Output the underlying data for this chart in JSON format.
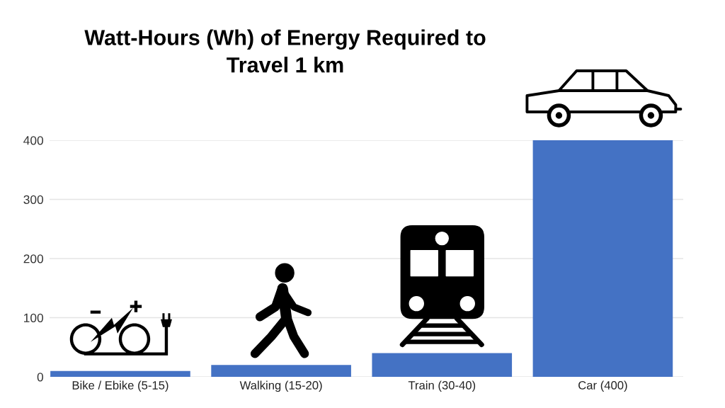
{
  "chart_data": {
    "type": "bar",
    "title": "Watt-Hours (Wh) of Energy Required to\nTravel 1 km",
    "categories": [
      "Bike / Ebike (5-15)",
      "Walking (15-20)",
      "Train (30-40)",
      "Car (400)"
    ],
    "values": [
      10,
      20,
      40,
      400
    ],
    "color": "#4472c4",
    "ylim": [
      0,
      400
    ],
    "yticks": [
      0,
      100,
      200,
      300,
      400
    ],
    "grid": "y"
  }
}
